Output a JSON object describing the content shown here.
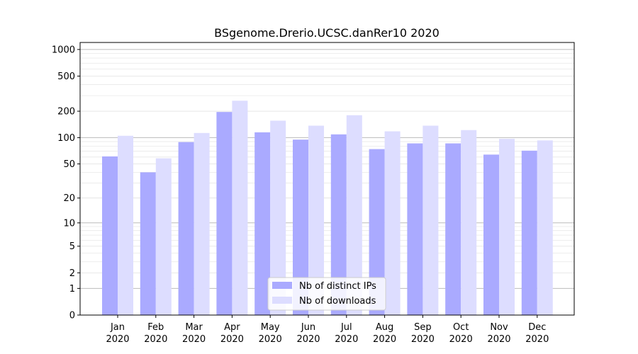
{
  "chart_data": {
    "type": "bar",
    "title": "BSgenome.Drerio.UCSC.danRer10 2020",
    "xlabel": "",
    "ylabel": "",
    "yscale": "log(1+y)",
    "ylim": [
      0,
      1200
    ],
    "yticks": [
      0,
      1,
      2,
      5,
      10,
      20,
      50,
      100,
      200,
      500,
      1000
    ],
    "categories": [
      "Jan\n2020",
      "Feb\n2020",
      "Mar\n2020",
      "Apr\n2020",
      "May\n2020",
      "Jun\n2020",
      "Jul\n2020",
      "Aug\n2020",
      "Sep\n2020",
      "Oct\n2020",
      "Nov\n2020",
      "Dec\n2020"
    ],
    "series": [
      {
        "name": "Nb of distinct IPs",
        "color": "#aaaaff",
        "values": [
          61,
          40,
          89,
          196,
          115,
          95,
          109,
          74,
          86,
          86,
          64,
          71
        ]
      },
      {
        "name": "Nb of downloads",
        "color": "#ddddff",
        "values": [
          105,
          58,
          113,
          263,
          156,
          137,
          180,
          118,
          137,
          122,
          97,
          93
        ]
      }
    ],
    "legend_position": "bottom-center",
    "grid": true
  }
}
